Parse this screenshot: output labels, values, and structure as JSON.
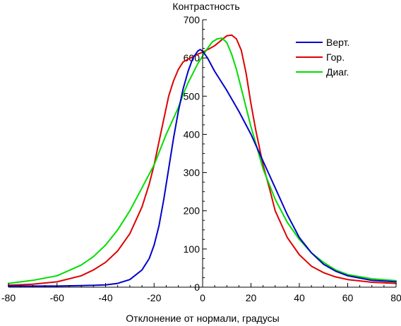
{
  "chart_data": {
    "type": "line",
    "title": "Контрастность",
    "xlabel": "Отклонение от нормали, градусы",
    "ylabel": "",
    "xlim": [
      -80,
      80
    ],
    "ylim": [
      0,
      700
    ],
    "x_ticks": [
      -80,
      -60,
      -40,
      -20,
      0,
      20,
      40,
      60,
      80
    ],
    "y_ticks": [
      0,
      100,
      200,
      300,
      400,
      500,
      600,
      700
    ],
    "x_tick_labels": [
      "-80",
      "-60",
      "-40",
      "-20",
      "0",
      "20",
      "40",
      "60",
      "80"
    ],
    "y_tick_labels": [
      "0",
      "100",
      "200",
      "300",
      "400",
      "500",
      "600",
      "700"
    ],
    "grid": false,
    "legend_position": "top-right",
    "series": [
      {
        "name": "Верт.",
        "color": "#0000cc",
        "points": [
          [
            -80,
            3
          ],
          [
            -60,
            3
          ],
          [
            -50,
            4
          ],
          [
            -40,
            6
          ],
          [
            -35,
            10
          ],
          [
            -30,
            20
          ],
          [
            -25,
            45
          ],
          [
            -22,
            75
          ],
          [
            -20,
            110
          ],
          [
            -18,
            160
          ],
          [
            -16,
            230
          ],
          [
            -14,
            310
          ],
          [
            -12,
            390
          ],
          [
            -10,
            460
          ],
          [
            -8,
            520
          ],
          [
            -6,
            565
          ],
          [
            -4,
            600
          ],
          [
            -2,
            618
          ],
          [
            -1,
            622
          ],
          [
            0,
            618
          ],
          [
            2,
            600
          ],
          [
            5,
            565
          ],
          [
            10,
            515
          ],
          [
            15,
            460
          ],
          [
            20,
            400
          ],
          [
            25,
            330
          ],
          [
            30,
            260
          ],
          [
            35,
            190
          ],
          [
            40,
            130
          ],
          [
            45,
            90
          ],
          [
            50,
            60
          ],
          [
            55,
            42
          ],
          [
            60,
            30
          ],
          [
            70,
            18
          ],
          [
            80,
            14
          ]
        ]
      },
      {
        "name": "Гор.",
        "color": "#dd0000",
        "points": [
          [
            -80,
            5
          ],
          [
            -70,
            8
          ],
          [
            -60,
            14
          ],
          [
            -50,
            30
          ],
          [
            -45,
            45
          ],
          [
            -40,
            65
          ],
          [
            -35,
            95
          ],
          [
            -30,
            140
          ],
          [
            -25,
            210
          ],
          [
            -22,
            270
          ],
          [
            -20,
            320
          ],
          [
            -18,
            380
          ],
          [
            -16,
            440
          ],
          [
            -14,
            500
          ],
          [
            -12,
            540
          ],
          [
            -10,
            570
          ],
          [
            -8,
            590
          ],
          [
            -5,
            600
          ],
          [
            -2,
            610
          ],
          [
            0,
            615
          ],
          [
            3,
            625
          ],
          [
            5,
            632
          ],
          [
            8,
            648
          ],
          [
            10,
            658
          ],
          [
            12,
            660
          ],
          [
            14,
            650
          ],
          [
            16,
            620
          ],
          [
            18,
            560
          ],
          [
            20,
            480
          ],
          [
            22,
            410
          ],
          [
            25,
            320
          ],
          [
            28,
            250
          ],
          [
            30,
            200
          ],
          [
            35,
            130
          ],
          [
            40,
            85
          ],
          [
            45,
            55
          ],
          [
            50,
            38
          ],
          [
            55,
            27
          ],
          [
            60,
            20
          ],
          [
            70,
            13
          ],
          [
            80,
            10
          ]
        ]
      },
      {
        "name": "Диаг.",
        "color": "#00dd00",
        "points": [
          [
            -80,
            10
          ],
          [
            -70,
            18
          ],
          [
            -60,
            30
          ],
          [
            -50,
            58
          ],
          [
            -45,
            80
          ],
          [
            -40,
            110
          ],
          [
            -35,
            150
          ],
          [
            -30,
            200
          ],
          [
            -25,
            260
          ],
          [
            -20,
            320
          ],
          [
            -15,
            400
          ],
          [
            -10,
            470
          ],
          [
            -8,
            505
          ],
          [
            -6,
            535
          ],
          [
            -4,
            560
          ],
          [
            -2,
            585
          ],
          [
            0,
            605
          ],
          [
            2,
            625
          ],
          [
            4,
            642
          ],
          [
            6,
            650
          ],
          [
            8,
            652
          ],
          [
            10,
            640
          ],
          [
            12,
            610
          ],
          [
            14,
            570
          ],
          [
            16,
            520
          ],
          [
            18,
            470
          ],
          [
            20,
            420
          ],
          [
            25,
            310
          ],
          [
            30,
            230
          ],
          [
            35,
            170
          ],
          [
            40,
            125
          ],
          [
            45,
            90
          ],
          [
            50,
            65
          ],
          [
            55,
            45
          ],
          [
            60,
            33
          ],
          [
            70,
            22
          ],
          [
            80,
            17
          ]
        ]
      }
    ]
  }
}
